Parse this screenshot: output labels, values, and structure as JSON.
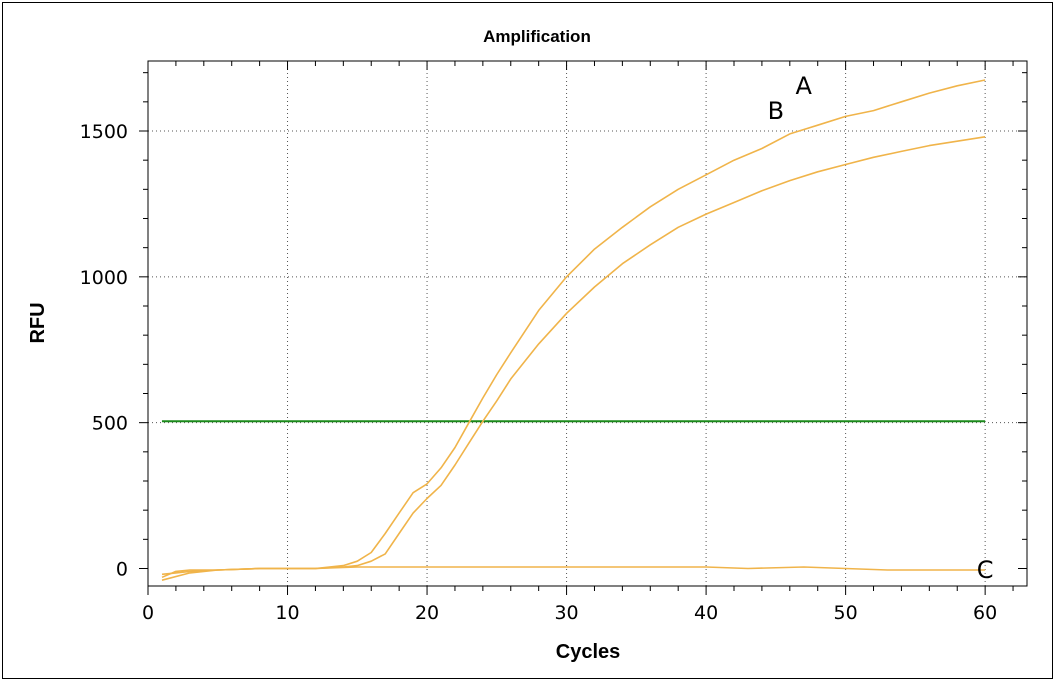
{
  "chart_data": {
    "type": "line",
    "title": "Amplification",
    "xlabel": "Cycles",
    "ylabel": "RFU",
    "xlim": [
      0,
      63
    ],
    "ylim": [
      -60,
      1740
    ],
    "x_ticks": [
      0,
      10,
      20,
      30,
      40,
      50,
      60
    ],
    "y_ticks": [
      0,
      500,
      1000,
      1500
    ],
    "grid": true,
    "colors": {
      "curve": "#f0b44a",
      "threshold": "#1a8a1a"
    },
    "threshold": 505,
    "series": [
      {
        "name": "A",
        "x": [
          1,
          2,
          3,
          5,
          8,
          10,
          12,
          14,
          15,
          16,
          17,
          18,
          19,
          20,
          21,
          22,
          23,
          24,
          25,
          26,
          28,
          30,
          32,
          34,
          36,
          38,
          40,
          42,
          44,
          46,
          48,
          50,
          52,
          54,
          56,
          58,
          60
        ],
        "y": [
          -30,
          -10,
          -5,
          -5,
          0,
          0,
          0,
          10,
          25,
          55,
          120,
          190,
          260,
          290,
          345,
          415,
          500,
          585,
          665,
          740,
          885,
          1000,
          1095,
          1170,
          1240,
          1300,
          1350,
          1400,
          1440,
          1490,
          1520,
          1550,
          1570,
          1600,
          1630,
          1655,
          1675
        ]
      },
      {
        "name": "B",
        "x": [
          1,
          2,
          3,
          5,
          8,
          10,
          12,
          14,
          15,
          16,
          17,
          18,
          19,
          20,
          21,
          22,
          23,
          24,
          25,
          26,
          28,
          30,
          32,
          34,
          36,
          38,
          40,
          42,
          44,
          46,
          48,
          50,
          52,
          54,
          56,
          58,
          60
        ],
        "y": [
          -20,
          -15,
          -10,
          -5,
          0,
          0,
          0,
          5,
          10,
          25,
          50,
          120,
          190,
          240,
          285,
          355,
          430,
          505,
          575,
          650,
          770,
          875,
          965,
          1045,
          1110,
          1170,
          1215,
          1255,
          1295,
          1330,
          1360,
          1385,
          1410,
          1430,
          1450,
          1465,
          1480
        ]
      },
      {
        "name": "C",
        "x": [
          1,
          3,
          5,
          8,
          10,
          12,
          15,
          18,
          20,
          22,
          25,
          28,
          30,
          33,
          36,
          40,
          43,
          47,
          50,
          53,
          56,
          60
        ],
        "y": [
          -40,
          -15,
          -5,
          0,
          0,
          0,
          5,
          5,
          5,
          5,
          5,
          5,
          5,
          5,
          5,
          5,
          0,
          5,
          0,
          -5,
          -5,
          -5
        ]
      }
    ]
  }
}
